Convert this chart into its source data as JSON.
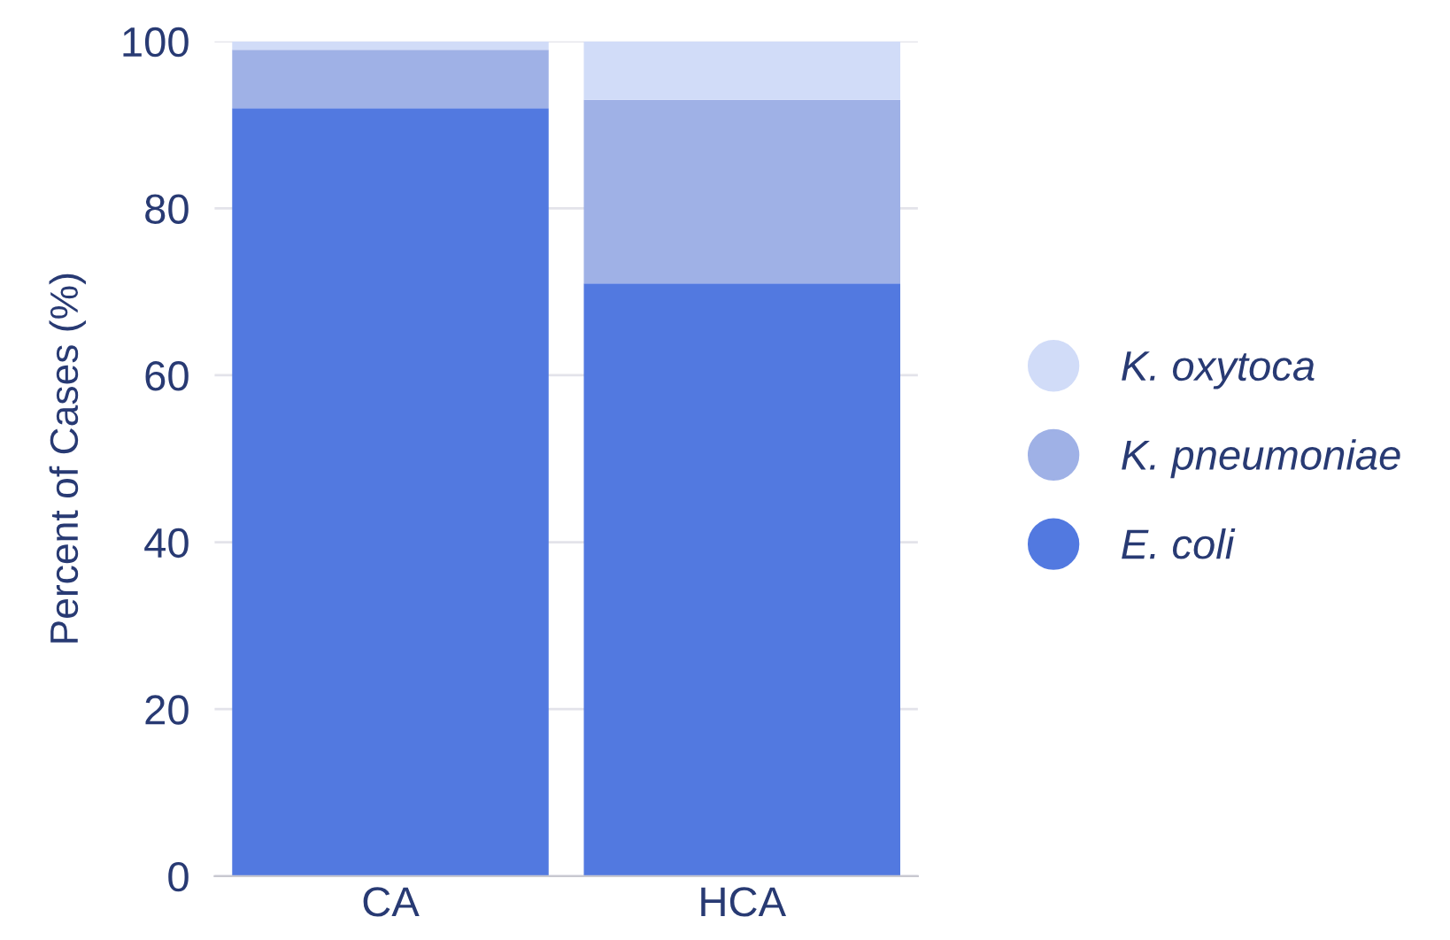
{
  "chart_data": {
    "type": "bar",
    "stacked": true,
    "ylabel": "Percent of Cases (%)",
    "categories": [
      "CA",
      "HCA"
    ],
    "series": [
      {
        "name": "E. coli",
        "color": "#5279e0",
        "values": [
          92,
          71
        ]
      },
      {
        "name": "K. pneumoniae",
        "color": "#9fb1e6",
        "values": [
          7,
          22
        ]
      },
      {
        "name": "K. oxytoca",
        "color": "#d1dcf8",
        "values": [
          1,
          7
        ]
      }
    ],
    "ylim": [
      0,
      100
    ],
    "yticks": [
      0,
      20,
      40,
      60,
      80,
      100
    ],
    "grid": "y",
    "legend": "right"
  }
}
